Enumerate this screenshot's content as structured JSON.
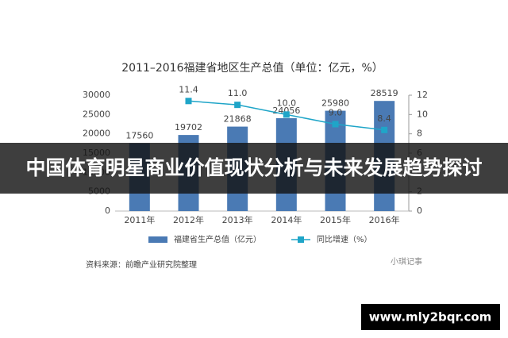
{
  "chart_data": {
    "type": "bar-line",
    "title": "2011–2016福建省地区生产总值（单位：亿元，%）",
    "categories": [
      "2011年",
      "2012年",
      "2013年",
      "2014年",
      "2015年",
      "2016年"
    ],
    "series": [
      {
        "name": "福建省生产总值（亿元）",
        "color": "#4a7ab4",
        "type": "bar",
        "values": [
          17560,
          19702,
          21868,
          24056,
          25980,
          28519
        ]
      },
      {
        "name": "同比增速（%）",
        "color": "#1fa5c8",
        "type": "line",
        "axis": "y2",
        "values": [
          null,
          11.4,
          11.0,
          10.0,
          9.0,
          8.4
        ],
        "value_labels": [
          null,
          "11.4",
          "11.0",
          "10.0",
          "9.0",
          "8.4"
        ]
      }
    ],
    "ylim": [
      0,
      30000
    ],
    "yticks": [
      0,
      5000,
      10000,
      15000,
      20000,
      25000,
      30000
    ],
    "y2lim": [
      0,
      12
    ],
    "y2ticks": [
      0,
      2,
      4,
      6,
      8,
      10,
      12
    ],
    "source": "资料来源：前瞻产业研究院整理"
  },
  "watermark": "小琪记事",
  "banner": "中国体育明星商业价值现状分析与未来发展趋势探讨",
  "url": "www.mly2bqr.com"
}
